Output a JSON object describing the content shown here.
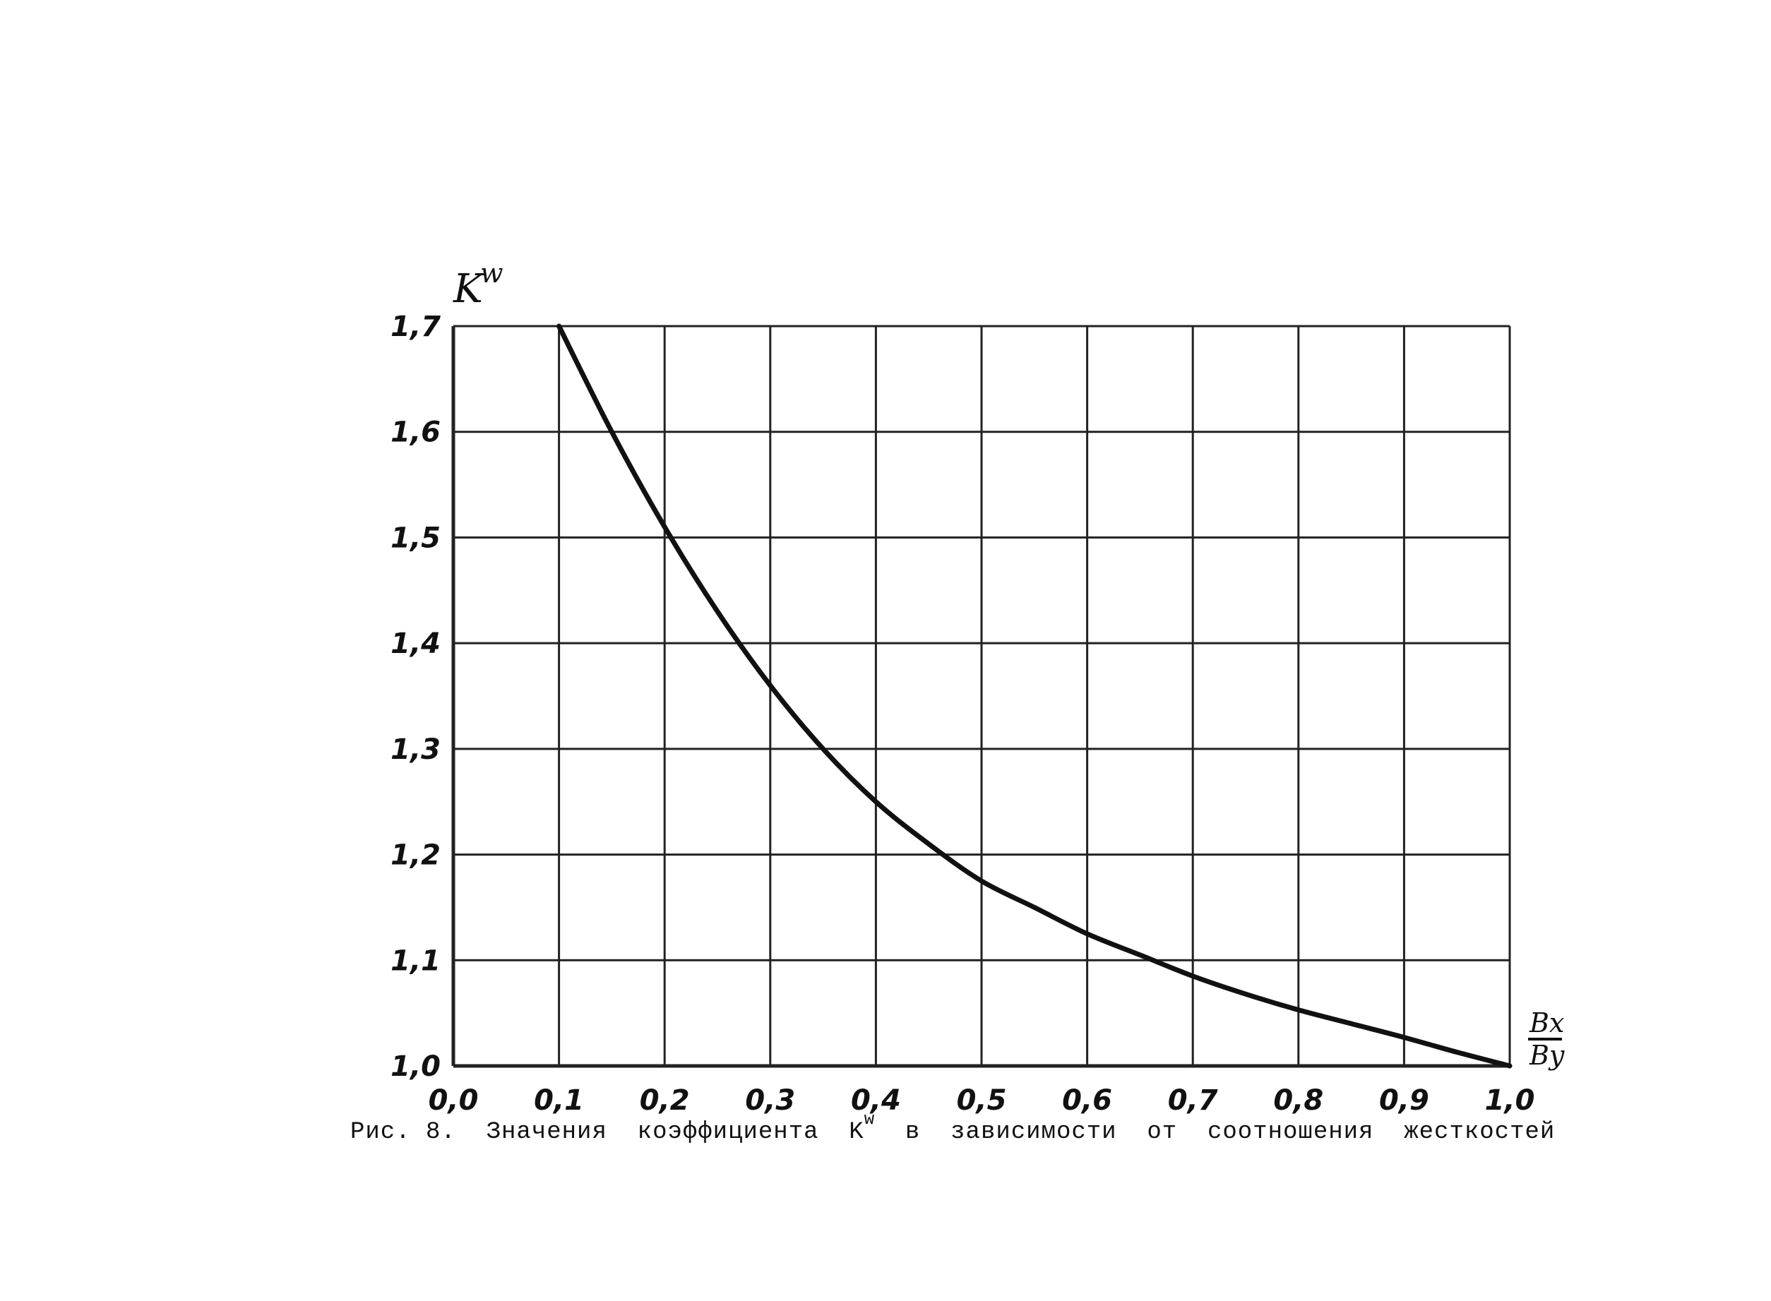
{
  "chart_data": {
    "type": "line",
    "title": "",
    "ylabel": "K",
    "ylabel_sup": "w",
    "xlabel_num": "Bx",
    "xlabel_den": "By",
    "xlim": [
      0.0,
      1.0
    ],
    "ylim": [
      1.0,
      1.7
    ],
    "grid": true,
    "x_ticks": [
      "0,0",
      "0,1",
      "0,2",
      "0,3",
      "0,4",
      "0,5",
      "0,6",
      "0,7",
      "0,8",
      "0,9",
      "1,0"
    ],
    "y_ticks": [
      "1,0",
      "1,1",
      "1,2",
      "1,3",
      "1,4",
      "1,5",
      "1,6",
      "1,7"
    ],
    "series": [
      {
        "x": [
          0.1,
          0.15,
          0.2,
          0.25,
          0.3,
          0.35,
          0.4,
          0.45,
          0.5,
          0.55,
          0.6,
          0.65,
          0.7,
          0.75,
          0.8,
          0.85,
          0.9,
          0.95,
          1.0
        ],
        "y": [
          1.7,
          1.6,
          1.51,
          1.43,
          1.36,
          1.3,
          1.25,
          1.21,
          1.175,
          1.15,
          1.125,
          1.105,
          1.085,
          1.068,
          1.053,
          1.04,
          1.027,
          1.013,
          1.0
        ]
      }
    ]
  },
  "caption": {
    "prefix": "Рис. 8.  Значения  коэффициента  K",
    "sup": "w",
    "suffix": "  в  зависимости  от  соотношения  жесткостей"
  },
  "colors": {
    "line": "#111111",
    "grid": "#222222",
    "background": "#ffffff"
  }
}
